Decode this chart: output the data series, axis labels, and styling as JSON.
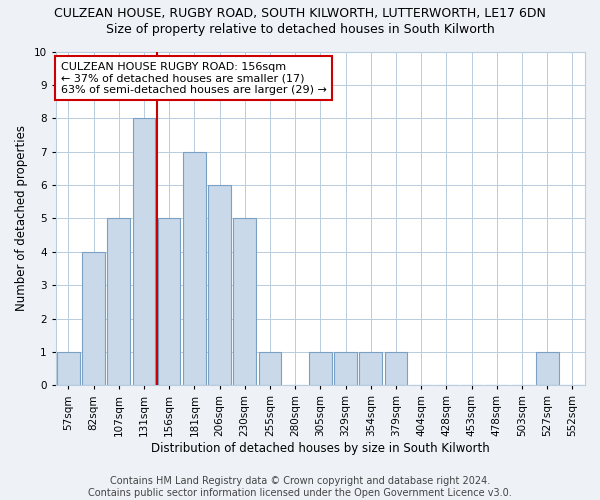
{
  "title": "CULZEAN HOUSE, RUGBY ROAD, SOUTH KILWORTH, LUTTERWORTH, LE17 6DN",
  "subtitle": "Size of property relative to detached houses in South Kilworth",
  "xlabel": "Distribution of detached houses by size in South Kilworth",
  "ylabel": "Number of detached properties",
  "footer_line1": "Contains HM Land Registry data © Crown copyright and database right 2024.",
  "footer_line2": "Contains public sector information licensed under the Open Government Licence v3.0.",
  "bar_labels": [
    "57sqm",
    "82sqm",
    "107sqm",
    "131sqm",
    "156sqm",
    "181sqm",
    "206sqm",
    "230sqm",
    "255sqm",
    "280sqm",
    "305sqm",
    "329sqm",
    "354sqm",
    "379sqm",
    "404sqm",
    "428sqm",
    "453sqm",
    "478sqm",
    "503sqm",
    "527sqm",
    "552sqm"
  ],
  "bar_values": [
    1,
    4,
    5,
    8,
    5,
    7,
    6,
    5,
    1,
    0,
    1,
    1,
    1,
    1,
    0,
    0,
    0,
    0,
    0,
    1,
    0
  ],
  "bar_color": "#c9d9ea",
  "bar_edge_color": "#7aa0c4",
  "ref_line_color": "#cc0000",
  "ref_line_index": 3.5,
  "annotation_text": "CULZEAN HOUSE RUGBY ROAD: 156sqm\n← 37% of detached houses are smaller (17)\n63% of semi-detached houses are larger (29) →",
  "annotation_box_facecolor": "#ffffff",
  "annotation_box_edgecolor": "#cc0000",
  "ylim": [
    0,
    10
  ],
  "yticks": [
    0,
    1,
    2,
    3,
    4,
    5,
    6,
    7,
    8,
    9,
    10
  ],
  "background_color": "#eef2f7",
  "plot_background_color": "#ffffff",
  "grid_color": "#b8cde0",
  "title_fontsize": 9,
  "subtitle_fontsize": 9,
  "xlabel_fontsize": 8.5,
  "ylabel_fontsize": 8.5,
  "tick_fontsize": 7.5,
  "annotation_fontsize": 8,
  "footer_fontsize": 7
}
